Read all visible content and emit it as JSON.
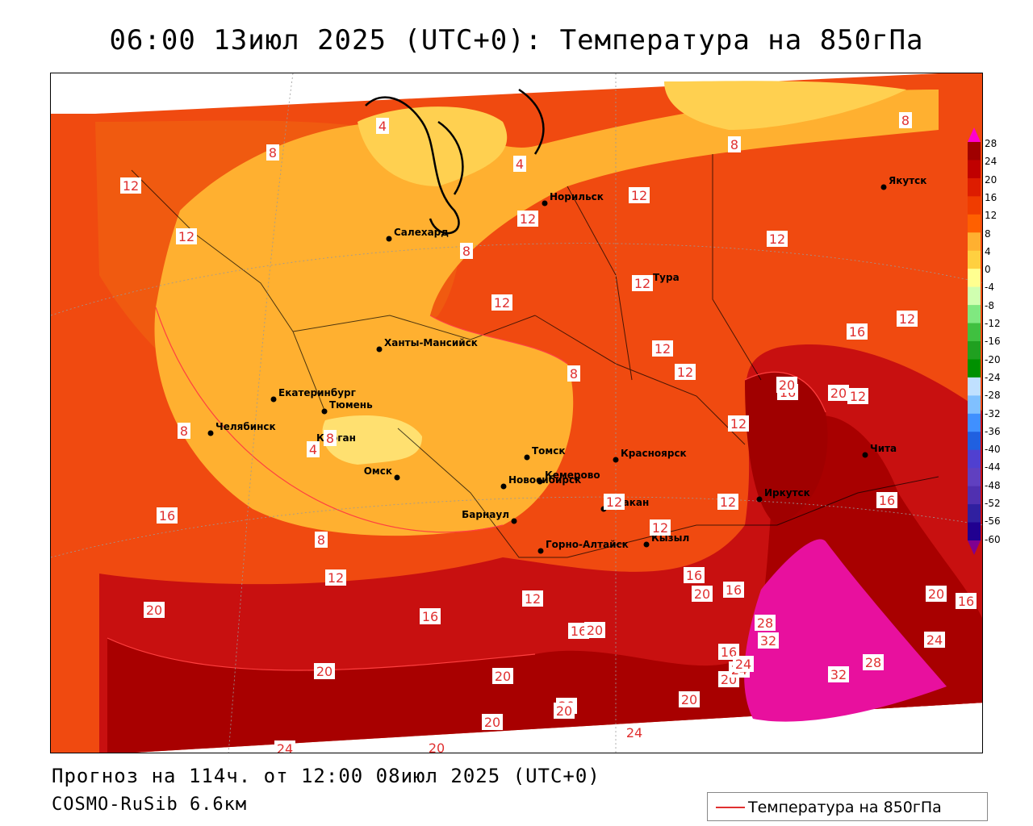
{
  "title": "06:00 13июл 2025 (UTC+0): Температура на 850гПа",
  "footer": {
    "forecast": "Прогноз на 114ч. от 12:00 08июл 2025 (UTC+0)",
    "model": "COSMO-RuSib 6.6км"
  },
  "legend": {
    "label": "Температура на 850гПа",
    "line_color": "#e03030"
  },
  "colorbar": {
    "labels": [
      "28",
      "24",
      "20",
      "16",
      "12",
      "8",
      "4",
      "0",
      "-4",
      "-8",
      "-12",
      "-16",
      "-20",
      "-24",
      "-28",
      "-32",
      "-36",
      "-40",
      "-44",
      "-48",
      "-52",
      "-56",
      "-60"
    ],
    "colors": [
      "#ff00cc",
      "#a00000",
      "#c00000",
      "#dd1c00",
      "#f03c00",
      "#ff6000",
      "#ffb030",
      "#ffd040",
      "#ffff90",
      "#d0ffb0",
      "#80e880",
      "#40c040",
      "#20a020",
      "#009000",
      "#c0e0ff",
      "#80c0ff",
      "#4090ff",
      "#2060e0",
      "#5040d0",
      "#6040c0",
      "#5030b0",
      "#3020a0",
      "#200090",
      "#800090"
    ]
  },
  "cities": [
    {
      "name": "Салехард"
    },
    {
      "name": "Норильск"
    },
    {
      "name": "Якутск"
    },
    {
      "name": "Тура"
    },
    {
      "name": "Ханты-Мансийск"
    },
    {
      "name": "Екатеринбург"
    },
    {
      "name": "Тюмень"
    },
    {
      "name": "Челябинск"
    },
    {
      "name": "Курган"
    },
    {
      "name": "Омск"
    },
    {
      "name": "Новосибирск"
    },
    {
      "name": "Томск"
    },
    {
      "name": "Кемерово"
    },
    {
      "name": "Красноярск"
    },
    {
      "name": "Барнаул"
    },
    {
      "name": "Абакан"
    },
    {
      "name": "Горно-Алтайск"
    },
    {
      "name": "Кызыл"
    },
    {
      "name": "Иркутск"
    },
    {
      "name": "Чита"
    }
  ],
  "contour_labels": [
    "4",
    "4",
    "4",
    "8",
    "8",
    "8",
    "8",
    "8",
    "8",
    "8",
    "8",
    "12",
    "12",
    "12",
    "12",
    "12",
    "12",
    "12",
    "12",
    "12",
    "12",
    "12",
    "12",
    "12",
    "12",
    "12",
    "12",
    "12",
    "16",
    "16",
    "16",
    "16",
    "16",
    "16",
    "16",
    "16",
    "16",
    "16",
    "20",
    "20",
    "20",
    "20",
    "20",
    "20",
    "20",
    "20",
    "20",
    "20",
    "20",
    "20",
    "20",
    "20",
    "24",
    "24",
    "24",
    "24",
    "24",
    "28",
    "28",
    "32",
    "32"
  ]
}
